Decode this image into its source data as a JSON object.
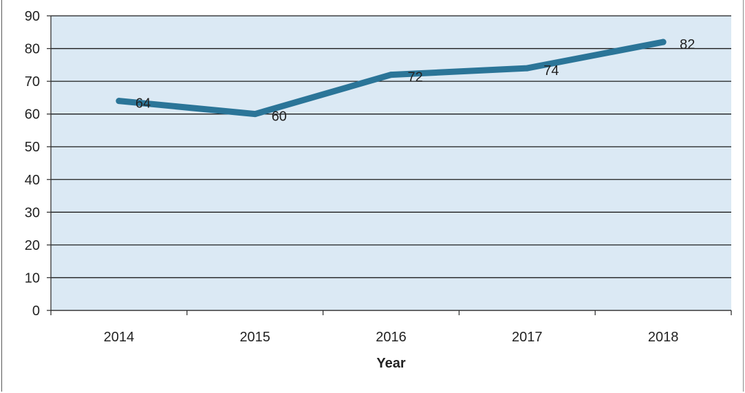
{
  "chart_data": {
    "type": "line",
    "title": "",
    "xlabel": "Year",
    "ylabel": "",
    "categories": [
      "2014",
      "2015",
      "2016",
      "2017",
      "2018"
    ],
    "series": [
      {
        "values": [
          64,
          60,
          72,
          74,
          82
        ]
      }
    ],
    "data_labels": [
      "64",
      "60",
      "72",
      "74",
      "82"
    ],
    "y_ticks": [
      0,
      10,
      20,
      30,
      40,
      50,
      60,
      70,
      80,
      90
    ],
    "ylim": [
      0,
      90
    ],
    "grid": true,
    "legend": "none",
    "colors": {
      "line": "#2b7598",
      "plot_background": "#dbe9f4",
      "gridline": "#1a1a1a"
    }
  }
}
